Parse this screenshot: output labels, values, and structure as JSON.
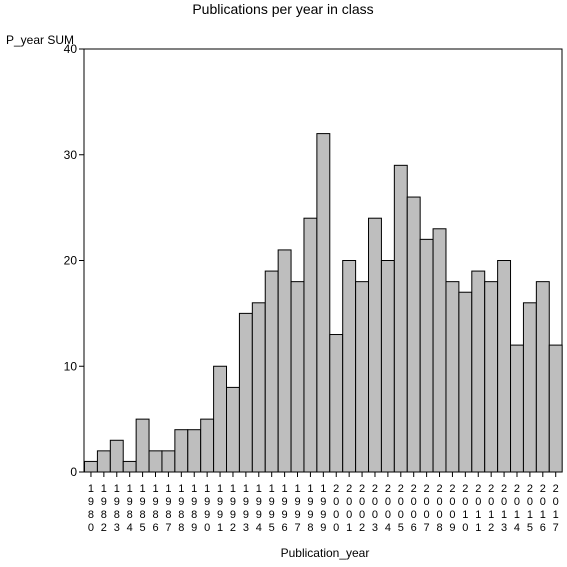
{
  "chart_data": {
    "type": "bar",
    "title": "Publications per year in class",
    "xlabel": "Publication_year",
    "ylabel": "P_year SUM",
    "ylim": [
      0,
      40
    ],
    "yticks": [
      0,
      10,
      20,
      30,
      40
    ],
    "grid": false,
    "categories": [
      "1980",
      "1982",
      "1983",
      "1984",
      "1985",
      "1986",
      "1987",
      "1988",
      "1989",
      "1990",
      "1991",
      "1992",
      "1993",
      "1994",
      "1995",
      "1996",
      "1997",
      "1998",
      "1999",
      "2000",
      "2001",
      "2002",
      "2003",
      "2004",
      "2005",
      "2006",
      "2007",
      "2008",
      "2009",
      "2010",
      "2011",
      "2012",
      "2013",
      "2014",
      "2015",
      "2016",
      "2017"
    ],
    "values": [
      1,
      2,
      3,
      1,
      5,
      2,
      2,
      4,
      4,
      5,
      10,
      8,
      15,
      16,
      19,
      21,
      18,
      24,
      32,
      13,
      20,
      18,
      24,
      20,
      29,
      26,
      22,
      23,
      18,
      17,
      19,
      18,
      20,
      12,
      16,
      18,
      12
    ],
    "bar_color": "#bebebe"
  }
}
